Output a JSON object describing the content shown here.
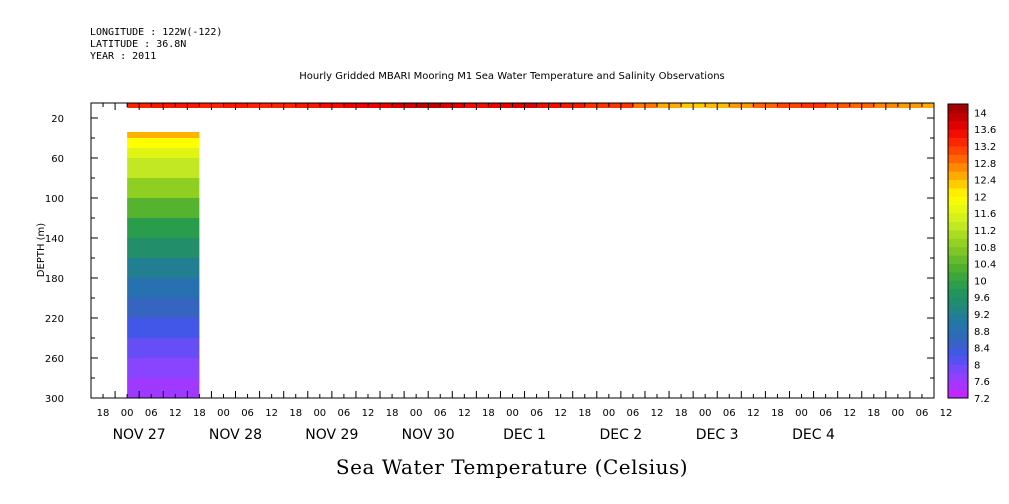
{
  "header": {
    "longitude": "LONGITUDE : 122W(-122)",
    "latitude": "LATITUDE : 36.8N",
    "year": "YEAR : 2011"
  },
  "chart_data": {
    "type": "heatmap",
    "title": "Hourly Gridded MBARI Mooring M1 Sea Water Temperature and Salinity Observations",
    "xlabel": "Sea Water Temperature (Celsius)",
    "ylabel": "DEPTH (m)",
    "ylim": [
      300,
      5
    ],
    "y_ticks": [
      20,
      60,
      100,
      140,
      180,
      220,
      260,
      300
    ],
    "x_hour_ticks": [
      "18",
      "00",
      "06",
      "12",
      "18",
      "00",
      "06",
      "12",
      "18",
      "00",
      "06",
      "12",
      "18",
      "00",
      "06",
      "12",
      "18",
      "00",
      "06",
      "12",
      "18",
      "00",
      "06",
      "12",
      "18",
      "00",
      "06",
      "12",
      "18",
      "00",
      "06",
      "12",
      "18",
      "00",
      "06",
      "12"
    ],
    "x_day_labels": [
      "NOV 27",
      "NOV 28",
      "NOV 29",
      "NOV 30",
      "DEC  1",
      "DEC  2",
      "DEC  3",
      "DEC  4"
    ],
    "x_range_hours": [
      -9,
      201
    ],
    "surface_layer": {
      "depth": [
        5,
        10
      ],
      "hours": [
        0,
        6,
        12,
        18,
        24,
        30,
        36,
        42,
        48,
        54,
        60,
        66,
        72,
        78,
        84,
        90,
        96,
        102,
        108,
        114,
        120,
        126,
        132,
        138,
        144,
        150,
        156,
        162,
        168,
        174,
        180,
        186,
        192,
        198
      ],
      "values": [
        13.3,
        13.4,
        13.4,
        13.3,
        13.4,
        13.3,
        13.3,
        13.4,
        13.5,
        13.6,
        13.6,
        13.8,
        13.9,
        13.7,
        13.5,
        13.6,
        13.7,
        13.5,
        13.4,
        13.2,
        13.2,
        12.8,
        12.5,
        12.3,
        12.4,
        12.6,
        12.9,
        13.1,
        13.2,
        13.0,
        12.9,
        12.7,
        12.6,
        12.5
      ]
    },
    "profile": {
      "hours": [
        0,
        18
      ],
      "depths": [
        34,
        40,
        50,
        60,
        80,
        100,
        120,
        140,
        160,
        180,
        200,
        220,
        240,
        260,
        280,
        300
      ],
      "values": [
        12.7,
        12.2,
        11.8,
        11.5,
        11.1,
        10.6,
        10.1,
        9.7,
        9.4,
        9.0,
        8.7,
        8.4,
        8.1,
        7.9,
        7.7,
        7.5
      ]
    },
    "colorbar": {
      "min": 7.2,
      "max": 14.2,
      "step": 0.2,
      "tick_labels": [
        "14",
        "13.6",
        "13.2",
        "12.8",
        "12.4",
        "12",
        "11.6",
        "11.2",
        "10.8",
        "10.4",
        "10",
        "9.6",
        "9.2",
        "8.8",
        "8.4",
        "8",
        "7.6",
        "7.2"
      ],
      "stops": [
        [
          7.2,
          "#cc22ff"
        ],
        [
          7.8,
          "#8844ff"
        ],
        [
          8.2,
          "#4455ee"
        ],
        [
          8.6,
          "#3366bb"
        ],
        [
          9.0,
          "#2277aa"
        ],
        [
          9.4,
          "#228877"
        ],
        [
          9.8,
          "#229955"
        ],
        [
          10.2,
          "#44aa33"
        ],
        [
          10.8,
          "#88cc22"
        ],
        [
          11.4,
          "#ccee22"
        ],
        [
          12.0,
          "#ffff00"
        ],
        [
          12.4,
          "#ffbb00"
        ],
        [
          12.8,
          "#ff7700"
        ],
        [
          13.2,
          "#ff3300"
        ],
        [
          13.6,
          "#ee0000"
        ],
        [
          14.2,
          "#990000"
        ]
      ]
    }
  }
}
